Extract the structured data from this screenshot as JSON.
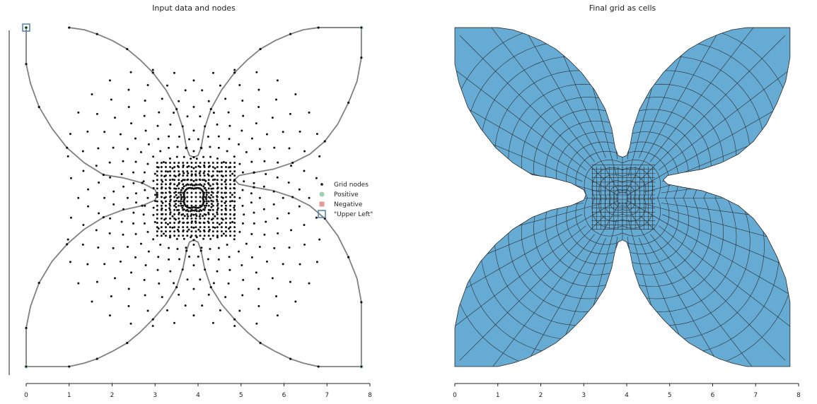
{
  "chart_data": [
    {
      "type": "scatter",
      "title": "Input data and nodes",
      "xlabel": "",
      "ylabel": "",
      "xlim": [
        0,
        8
      ],
      "xticks": [
        "0",
        "1",
        "2",
        "3",
        "4",
        "5",
        "6",
        "7",
        "8"
      ],
      "grid": false,
      "legend_position": "right",
      "legend": [
        "Grid nodes",
        "Positive",
        "Negative",
        "\"Upper Left\""
      ],
      "colors": {
        "outline": "#808080",
        "grid_nodes": "#111111",
        "positive": "#9fd0b4",
        "negative": "#e39a9a",
        "upper_left": "#4f7fae"
      },
      "outline": {
        "name": "boundary polygon",
        "points": [
          [
            1.0,
            7.9
          ],
          [
            1.35,
            7.85
          ],
          [
            1.65,
            7.75
          ],
          [
            2.0,
            7.6
          ],
          [
            2.35,
            7.4
          ],
          [
            2.65,
            7.15
          ],
          [
            2.95,
            6.85
          ],
          [
            3.25,
            6.45
          ],
          [
            3.5,
            6.0
          ],
          [
            3.65,
            5.55
          ],
          [
            3.73,
            5.1
          ],
          [
            3.8,
            4.92
          ],
          [
            3.9,
            4.88
          ],
          [
            4.0,
            4.92
          ],
          [
            4.07,
            5.1
          ],
          [
            4.15,
            5.55
          ],
          [
            4.3,
            6.0
          ],
          [
            4.55,
            6.45
          ],
          [
            4.85,
            6.85
          ],
          [
            5.15,
            7.15
          ],
          [
            5.45,
            7.4
          ],
          [
            5.8,
            7.6
          ],
          [
            6.15,
            7.75
          ],
          [
            6.45,
            7.85
          ],
          [
            6.8,
            7.9
          ],
          [
            7.8,
            7.9
          ],
          [
            7.8,
            7.2
          ],
          [
            7.7,
            6.65
          ],
          [
            7.5,
            6.15
          ],
          [
            7.25,
            5.65
          ],
          [
            6.95,
            5.25
          ],
          [
            6.6,
            4.95
          ],
          [
            6.2,
            4.75
          ],
          [
            5.75,
            4.6
          ],
          [
            5.3,
            4.52
          ],
          [
            4.95,
            4.45
          ],
          [
            4.85,
            4.35
          ],
          [
            4.95,
            4.25
          ],
          [
            5.3,
            4.18
          ],
          [
            5.75,
            4.1
          ],
          [
            6.2,
            3.95
          ],
          [
            6.6,
            3.75
          ],
          [
            6.95,
            3.45
          ],
          [
            7.25,
            3.05
          ],
          [
            7.5,
            2.55
          ],
          [
            7.7,
            2.05
          ],
          [
            7.8,
            1.5
          ],
          [
            7.8,
            0.0
          ],
          [
            6.8,
            0.0
          ],
          [
            6.45,
            0.08
          ],
          [
            6.15,
            0.18
          ],
          [
            5.8,
            0.35
          ],
          [
            5.45,
            0.55
          ],
          [
            5.15,
            0.8
          ],
          [
            4.85,
            1.1
          ],
          [
            4.55,
            1.45
          ],
          [
            4.3,
            1.85
          ],
          [
            4.15,
            2.3
          ],
          [
            4.07,
            2.7
          ],
          [
            4.0,
            2.9
          ],
          [
            3.9,
            2.95
          ],
          [
            3.8,
            2.9
          ],
          [
            3.73,
            2.7
          ],
          [
            3.65,
            2.3
          ],
          [
            3.5,
            1.85
          ],
          [
            3.25,
            1.45
          ],
          [
            2.95,
            1.1
          ],
          [
            2.65,
            0.8
          ],
          [
            2.35,
            0.55
          ],
          [
            2.0,
            0.35
          ],
          [
            1.65,
            0.18
          ],
          [
            1.35,
            0.08
          ],
          [
            1.0,
            0.0
          ],
          [
            0.0,
            0.0
          ],
          [
            0.0,
            0.9
          ],
          [
            0.1,
            1.4
          ],
          [
            0.3,
            1.95
          ],
          [
            0.6,
            2.45
          ],
          [
            0.95,
            2.85
          ],
          [
            1.35,
            3.2
          ],
          [
            1.8,
            3.48
          ],
          [
            2.25,
            3.65
          ],
          [
            2.7,
            3.75
          ],
          [
            3.0,
            3.88
          ],
          [
            3.05,
            4.0
          ],
          [
            3.0,
            4.12
          ],
          [
            2.7,
            4.28
          ],
          [
            2.25,
            4.4
          ],
          [
            1.8,
            4.47
          ],
          [
            1.35,
            4.75
          ],
          [
            0.95,
            5.1
          ],
          [
            0.6,
            5.55
          ],
          [
            0.3,
            6.05
          ],
          [
            0.1,
            6.6
          ],
          [
            0.0,
            7.05
          ],
          [
            0.0,
            7.9
          ]
        ]
      },
      "positive": [
        [
          0.0,
          7.9
        ],
        [
          7.8,
          7.9
        ],
        [
          0.0,
          0.0
        ],
        [
          7.8,
          0.0
        ]
      ],
      "upper_left": [
        [
          0.0,
          7.9
        ]
      ],
      "negative": []
    },
    {
      "type": "heatmap",
      "title": "Final grid as cells",
      "xlabel": "",
      "ylabel": "",
      "xlim": [
        0,
        8
      ],
      "xticks": [
        "0",
        "1",
        "2",
        "3",
        "4",
        "5",
        "6",
        "7",
        "8"
      ],
      "grid": false,
      "colors": {
        "cell_fill": "#66abd4",
        "cell_edge": "#2b2b2b"
      }
    }
  ]
}
